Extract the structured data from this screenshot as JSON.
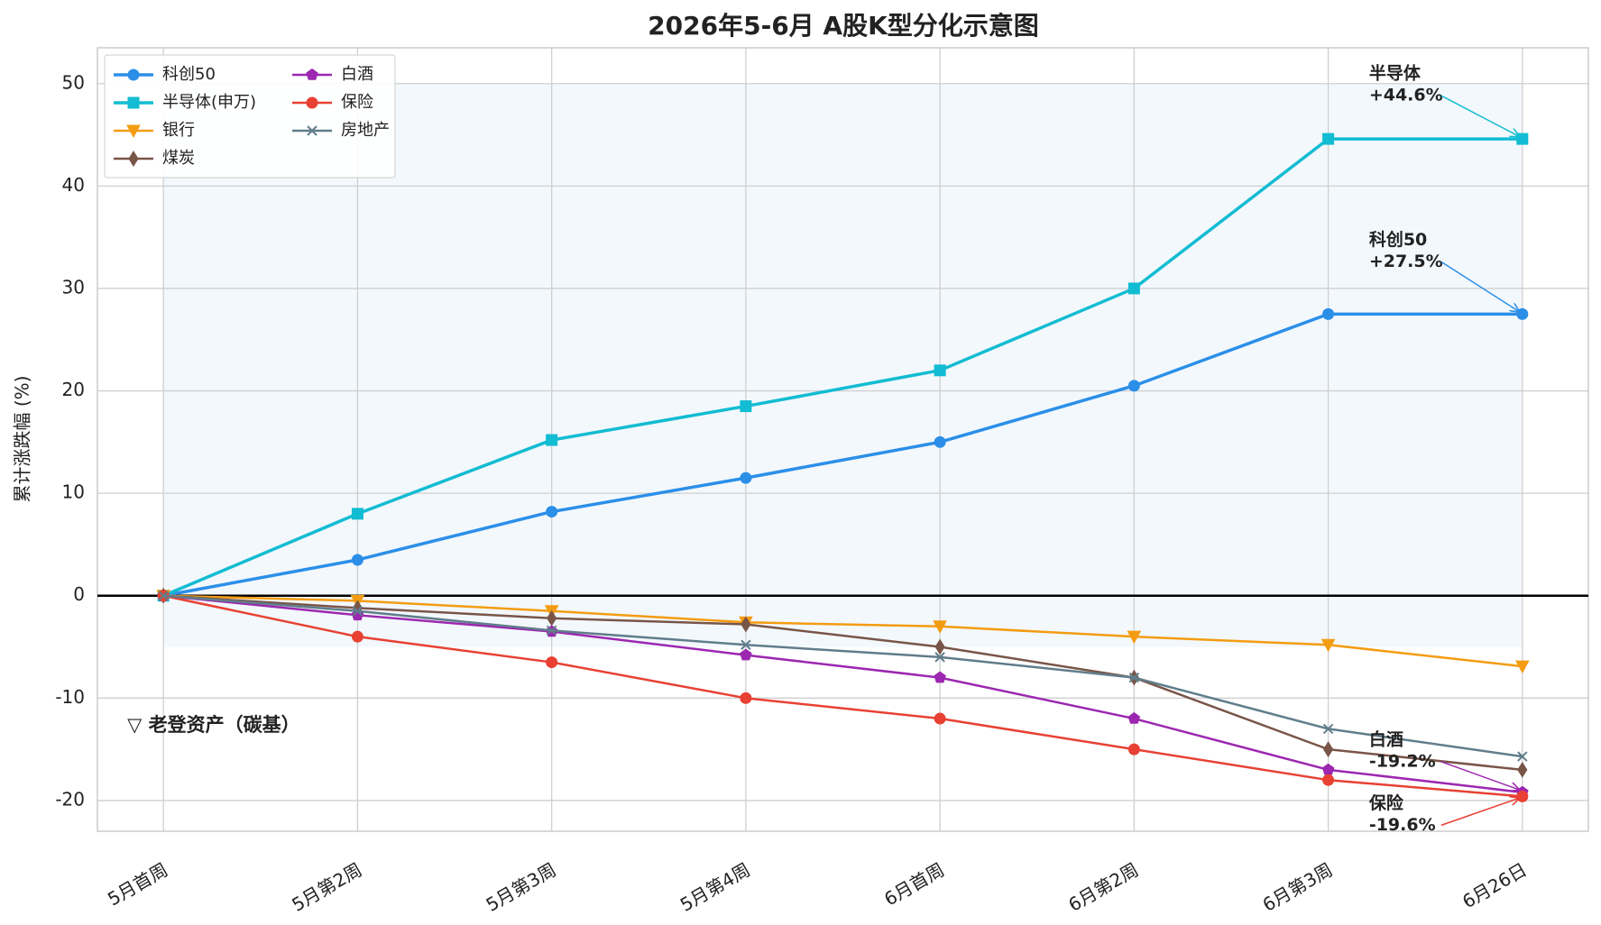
{
  "chart_data": {
    "type": "line",
    "title": "2026年5-6月 A股K型分化示意图",
    "y_label": "累计涨跌幅 (%)",
    "categories": [
      "5月首周",
      "5月第2周",
      "5月第3周",
      "5月第4周",
      "6月首周",
      "6月第2周",
      "6月第3周",
      "6月26日"
    ],
    "series": [
      {
        "name": "科创50",
        "color": "#2b8fe8",
        "marker": "circle",
        "width": 3.5,
        "values": [
          0,
          3.5,
          8.2,
          11.5,
          15,
          20.5,
          27.5,
          27.5
        ]
      },
      {
        "name": "半导体(申万)",
        "color": "#12bcd2",
        "marker": "square",
        "width": 3.5,
        "values": [
          0,
          8,
          15.2,
          18.5,
          22,
          30,
          44.6,
          44.6
        ]
      },
      {
        "name": "银行",
        "color": "#f39c12",
        "marker": "triangle-down",
        "width": 2.5,
        "values": [
          0,
          -0.5,
          -1.5,
          -2.6,
          -3,
          -4,
          -4.8,
          -6.9
        ]
      },
      {
        "name": "煤炭",
        "color": "#795548",
        "marker": "diamond",
        "width": 2.5,
        "values": [
          0,
          -1.2,
          -2.2,
          -2.8,
          -5,
          -8,
          -15,
          -17
        ]
      },
      {
        "name": "白酒",
        "color": "#9c27b0",
        "marker": "pentagon",
        "width": 2.5,
        "values": [
          0,
          -1.9,
          -3.5,
          -5.8,
          -8,
          -12,
          -17,
          -19.2
        ]
      },
      {
        "name": "保险",
        "color": "#e84133",
        "marker": "circle",
        "width": 2.5,
        "values": [
          0,
          -4,
          -6.5,
          -10,
          -12,
          -15,
          -18,
          -19.6
        ]
      },
      {
        "name": "房地产",
        "color": "#607d8b",
        "marker": "x",
        "width": 2.5,
        "values": [
          0,
          -1.5,
          -3.4,
          -4.8,
          -6,
          -8,
          -13,
          -15.7
        ]
      }
    ],
    "ylim": [
      -23,
      53.5
    ],
    "yticks": [
      -20,
      -10,
      0,
      10,
      20,
      30,
      40,
      50
    ],
    "grid": true,
    "highlight_range": [
      -5,
      50
    ],
    "legend": "upper-left",
    "annotations": [
      {
        "text": [
          "半导体",
          "+44.6%"
        ],
        "color": "#12bcd2"
      },
      {
        "text": [
          "科创50",
          "+27.5%"
        ],
        "color": "#2b8fe8"
      },
      {
        "text": [
          "白酒",
          "-19.2%"
        ],
        "color": "#9c27b0"
      },
      {
        "text": [
          "保险",
          "-19.6%"
        ],
        "color": "#e84133"
      }
    ],
    "side_note": {
      "text": "▽ 老登资产（碳基）",
      "color": "#e84133"
    }
  }
}
